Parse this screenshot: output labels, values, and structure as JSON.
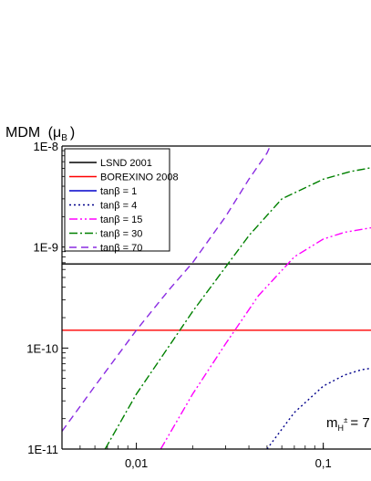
{
  "chart_data": {
    "type": "line",
    "ylabel": "MDM",
    "ylabel_unit": "(μ",
    "ylabel_unit_sub": "B",
    "ylabel_unit_close": ")",
    "x_scale": "log",
    "y_scale": "log",
    "xlim": [
      0.004,
      0.18
    ],
    "ylim": [
      1e-11,
      1e-08
    ],
    "x_ticks": [
      {
        "value": 0.01,
        "label": "0,01"
      },
      {
        "value": 0.1,
        "label": "0,1"
      }
    ],
    "y_ticks": [
      {
        "value": 1e-08,
        "label": "1E-8"
      },
      {
        "value": 1e-09,
        "label": "1E-9"
      },
      {
        "value": 1e-10,
        "label": "1E-10"
      },
      {
        "value": 1e-11,
        "label": "1E-11"
      }
    ],
    "legend_position": "top-left",
    "series": [
      {
        "name": "LSND 2001",
        "color": "#000000",
        "dash": "solid",
        "points": [
          [
            0.004,
            6.8e-10
          ],
          [
            0.18,
            6.8e-10
          ]
        ]
      },
      {
        "name": "BOREXINO 2008",
        "color": "#ff0000",
        "dash": "solid",
        "points": [
          [
            0.004,
            1.5e-10
          ],
          [
            0.18,
            1.5e-10
          ]
        ]
      },
      {
        "name": "tanβ = 1",
        "color": "#0000cc",
        "dash": "solid",
        "points": []
      },
      {
        "name": "tanβ = 4",
        "color": "#00008b",
        "dash": "dot",
        "points": [
          [
            0.05,
            1e-11
          ],
          [
            0.07,
            2.3e-11
          ],
          [
            0.1,
            4.2e-11
          ],
          [
            0.13,
            5.4e-11
          ],
          [
            0.16,
            6.1e-11
          ],
          [
            0.18,
            6.3e-11
          ]
        ]
      },
      {
        "name": "tanβ =  15",
        "color": "#ff00ff",
        "dash": "dashdotdot",
        "points": [
          [
            0.0135,
            1e-11
          ],
          [
            0.02,
            3.5e-11
          ],
          [
            0.03,
            1.1e-10
          ],
          [
            0.045,
            3.3e-10
          ],
          [
            0.07,
            8e-10
          ],
          [
            0.1,
            1.2e-09
          ],
          [
            0.13,
            1.4e-09
          ],
          [
            0.18,
            1.55e-09
          ]
        ]
      },
      {
        "name": "tanβ = 30",
        "color": "#008000",
        "dash": "dashdot",
        "points": [
          [
            0.0068,
            1e-11
          ],
          [
            0.01,
            3.5e-11
          ],
          [
            0.02,
            2.3e-10
          ],
          [
            0.04,
            1.3e-09
          ],
          [
            0.06,
            3e-09
          ],
          [
            0.1,
            4.7e-09
          ],
          [
            0.14,
            5.6e-09
          ],
          [
            0.18,
            6.1e-09
          ]
        ]
      },
      {
        "name": "tanβ = 70",
        "color": "#8a2be2",
        "dash": "dash",
        "points": [
          [
            0.004,
            1.5e-11
          ],
          [
            0.006,
            4.2e-11
          ],
          [
            0.01,
            1.5e-10
          ],
          [
            0.015,
            3.8e-10
          ],
          [
            0.02,
            7e-10
          ],
          [
            0.03,
            2e-09
          ],
          [
            0.04,
            4.7e-09
          ],
          [
            0.05,
            8.5e-09
          ],
          [
            0.052,
            1e-08
          ]
        ]
      }
    ],
    "annotation": {
      "main": "m",
      "sub": "H",
      "sup": "±",
      "tail": "= 7"
    }
  }
}
